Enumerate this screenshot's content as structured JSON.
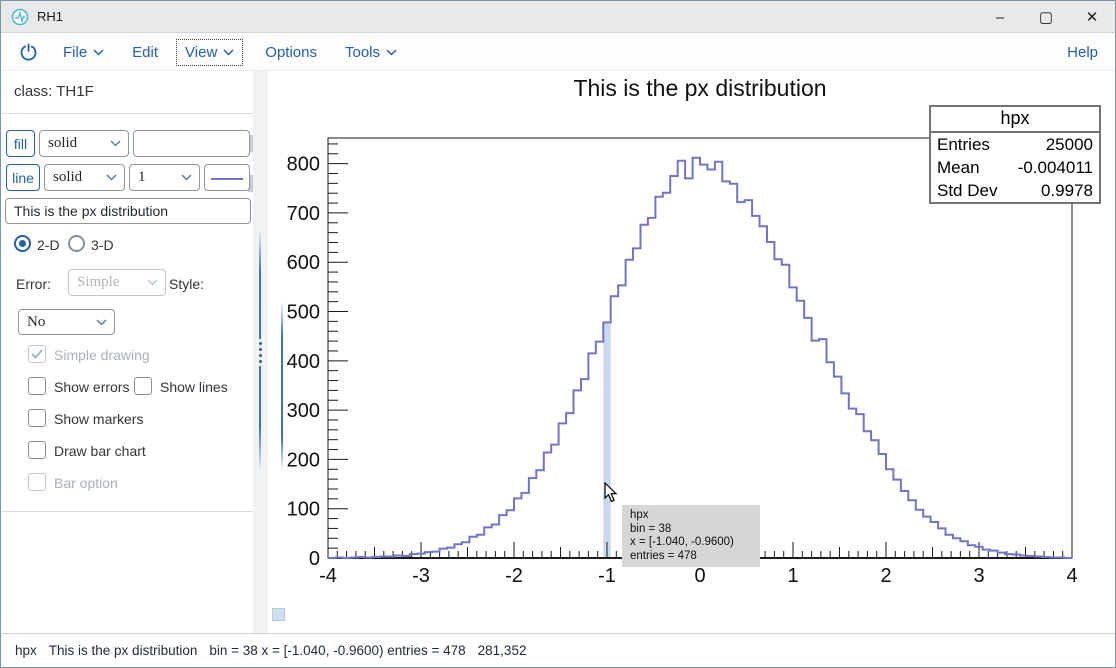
{
  "window": {
    "title": "RH1",
    "controls": {
      "minimize": "–",
      "maximize": "▢",
      "close": "✕"
    }
  },
  "menubar": {
    "items": [
      {
        "label": "File",
        "has_dropdown": true
      },
      {
        "label": "Edit",
        "has_dropdown": false
      },
      {
        "label": "View",
        "has_dropdown": true,
        "focused": true
      },
      {
        "label": "Options",
        "has_dropdown": false
      },
      {
        "label": "Tools",
        "has_dropdown": true
      }
    ],
    "help_label": "Help"
  },
  "sidebar": {
    "class_label": "class: TH1F",
    "fill_row": {
      "button": "fill",
      "style_value": "solid",
      "color_value": ""
    },
    "line_row": {
      "button": "line",
      "style_value": "solid",
      "width_value": "1"
    },
    "title_input": "This is the px distribution",
    "dim_radio": {
      "option_2d": "2-D",
      "option_3d": "3-D",
      "selected": "2-D"
    },
    "error_label": "Error:",
    "error_value": "Simple",
    "style_label": "Style:",
    "style_value": "No",
    "checkboxes": [
      {
        "label": "Simple drawing",
        "checked": true,
        "disabled": true
      },
      {
        "label": "Show errors",
        "checked": false,
        "disabled": false
      },
      {
        "label": "Show lines",
        "checked": false,
        "disabled": false
      },
      {
        "label": "Show markers",
        "checked": false,
        "disabled": false
      },
      {
        "label": "Draw bar chart",
        "checked": false,
        "disabled": false
      },
      {
        "label": "Bar option",
        "checked": false,
        "disabled": true
      }
    ]
  },
  "chart_data": {
    "type": "bar",
    "subtype": "histogram-step-outline",
    "name": "hpx",
    "title": "This is the px distribution",
    "x_range": [
      -4,
      4
    ],
    "n_bins": 100,
    "bin_width": 0.08,
    "ylim": [
      0,
      852
    ],
    "x_ticks": [
      -4,
      -3,
      -2,
      -1,
      0,
      1,
      2,
      3,
      4
    ],
    "y_ticks": [
      0,
      100,
      200,
      300,
      400,
      500,
      600,
      700,
      800
    ],
    "grid": false,
    "line_color": "#7373c9",
    "highlight_color": "#c9dbeb",
    "values": [
      0,
      1,
      0,
      1,
      2,
      1,
      2,
      3,
      3,
      5,
      4,
      8,
      9,
      12,
      13,
      19,
      21,
      28,
      32,
      43,
      47,
      62,
      68,
      87,
      97,
      121,
      132,
      162,
      178,
      214,
      230,
      273,
      294,
      340,
      363,
      415,
      439,
      478,
      531,
      553,
      605,
      628,
      676,
      690,
      733,
      741,
      775,
      806,
      770,
      812,
      798,
      788,
      804,
      764,
      759,
      722,
      726,
      694,
      673,
      641,
      606,
      595,
      549,
      522,
      487,
      441,
      444,
      397,
      368,
      334,
      303,
      292,
      257,
      239,
      211,
      180,
      159,
      136,
      117,
      98,
      84,
      73,
      60,
      47,
      40,
      34,
      26,
      23,
      17,
      15,
      11,
      8,
      7,
      5,
      4,
      3,
      2,
      1,
      1,
      0
    ],
    "highlighted_bin": {
      "index": 38,
      "x_interval": "[-1.040, -0.9600)",
      "entries": 478
    }
  },
  "stats_box": {
    "title": "hpx",
    "rows": [
      {
        "label": "Entries",
        "value": "25000"
      },
      {
        "label": "Mean",
        "value": "-0.004011"
      },
      {
        "label": "Std Dev",
        "value": "0.9978"
      }
    ]
  },
  "tooltip": {
    "lines": [
      "hpx",
      "bin = 38",
      "x = [-1.040, -0.9600)",
      "entries = 478"
    ]
  },
  "statusbar": {
    "segments": [
      "hpx",
      "This is the px distribution",
      "bin = 38 x = [-1.040, -0.9600) entries = 478",
      "281,352"
    ]
  }
}
